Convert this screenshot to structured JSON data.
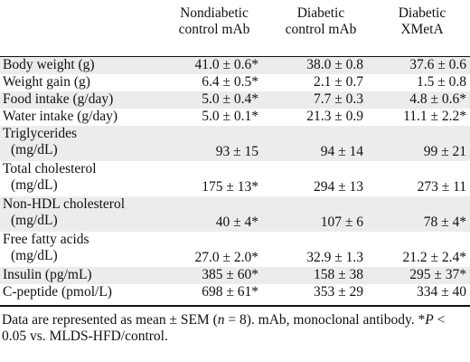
{
  "table": {
    "headers": [
      "",
      "Nondiabetic control mAb",
      "Diabetic control mAb",
      "Diabetic XMetA"
    ],
    "header_lines": [
      [
        "Nondiabetic",
        "control mAb"
      ],
      [
        "Diabetic",
        "control mAb"
      ],
      [
        "Diabetic",
        "XMetA"
      ]
    ],
    "rows": [
      {
        "label": [
          "Body weight (g)"
        ],
        "values": [
          "41.0 ± 0.6*",
          "38.0 ± 0.8",
          "37.6 ± 0.6"
        ]
      },
      {
        "label": [
          "Weight gain (g)"
        ],
        "values": [
          "6.4 ± 0.5*",
          "2.1 ± 0.7",
          "1.5 ± 0.8"
        ]
      },
      {
        "label": [
          "Food intake (g/day)"
        ],
        "values": [
          "5.0 ± 0.4*",
          "7.7 ± 0.3",
          "4.8 ± 0.6*"
        ]
      },
      {
        "label": [
          "Water intake (g/day)"
        ],
        "values": [
          "5.0 ± 0.1*",
          "21.3 ± 0.9",
          "11.1 ± 2.2*"
        ]
      },
      {
        "label": [
          "Triglycerides",
          "(mg/dL)"
        ],
        "values": [
          "93 ± 15",
          "94 ± 14",
          "99 ± 21"
        ]
      },
      {
        "label": [
          "Total cholesterol",
          "(mg/dL)"
        ],
        "values": [
          "175 ± 13*",
          "294 ± 13",
          "273 ± 11"
        ]
      },
      {
        "label": [
          "Non-HDL cholesterol",
          "(mg/dL)"
        ],
        "values": [
          "40 ± 4*",
          "107 ± 6",
          "78 ± 4*"
        ]
      },
      {
        "label": [
          "Free fatty acids",
          "(mg/dL)"
        ],
        "values": [
          "27.0 ± 2.0*",
          "32.9 ± 1.3",
          "21.2 ± 2.4*"
        ]
      },
      {
        "label": [
          "Insulin (pg/mL)"
        ],
        "values": [
          "385 ± 60*",
          "158 ± 38",
          "295 ± 37*"
        ]
      },
      {
        "label": [
          "C-peptide (pmol/L)"
        ],
        "values": [
          "698 ± 61*",
          "353 ± 29",
          "334 ± 40"
        ]
      }
    ]
  },
  "footnote": "Data are represented as mean ± SEM (n = 8). mAb, monoclonal antibody. *P < 0.05 vs. MLDS-HFD/control.",
  "footnote_parts": {
    "p1": "Data are represented as mean ± SEM (",
    "n": "n",
    "p2": " = 8). mAb, monoclonal antibody. *",
    "P": "P",
    "p3": " < 0.05 vs. MLDS-HFD/control."
  },
  "colors": {
    "row_shade": "#ececec",
    "text": "#111111"
  }
}
